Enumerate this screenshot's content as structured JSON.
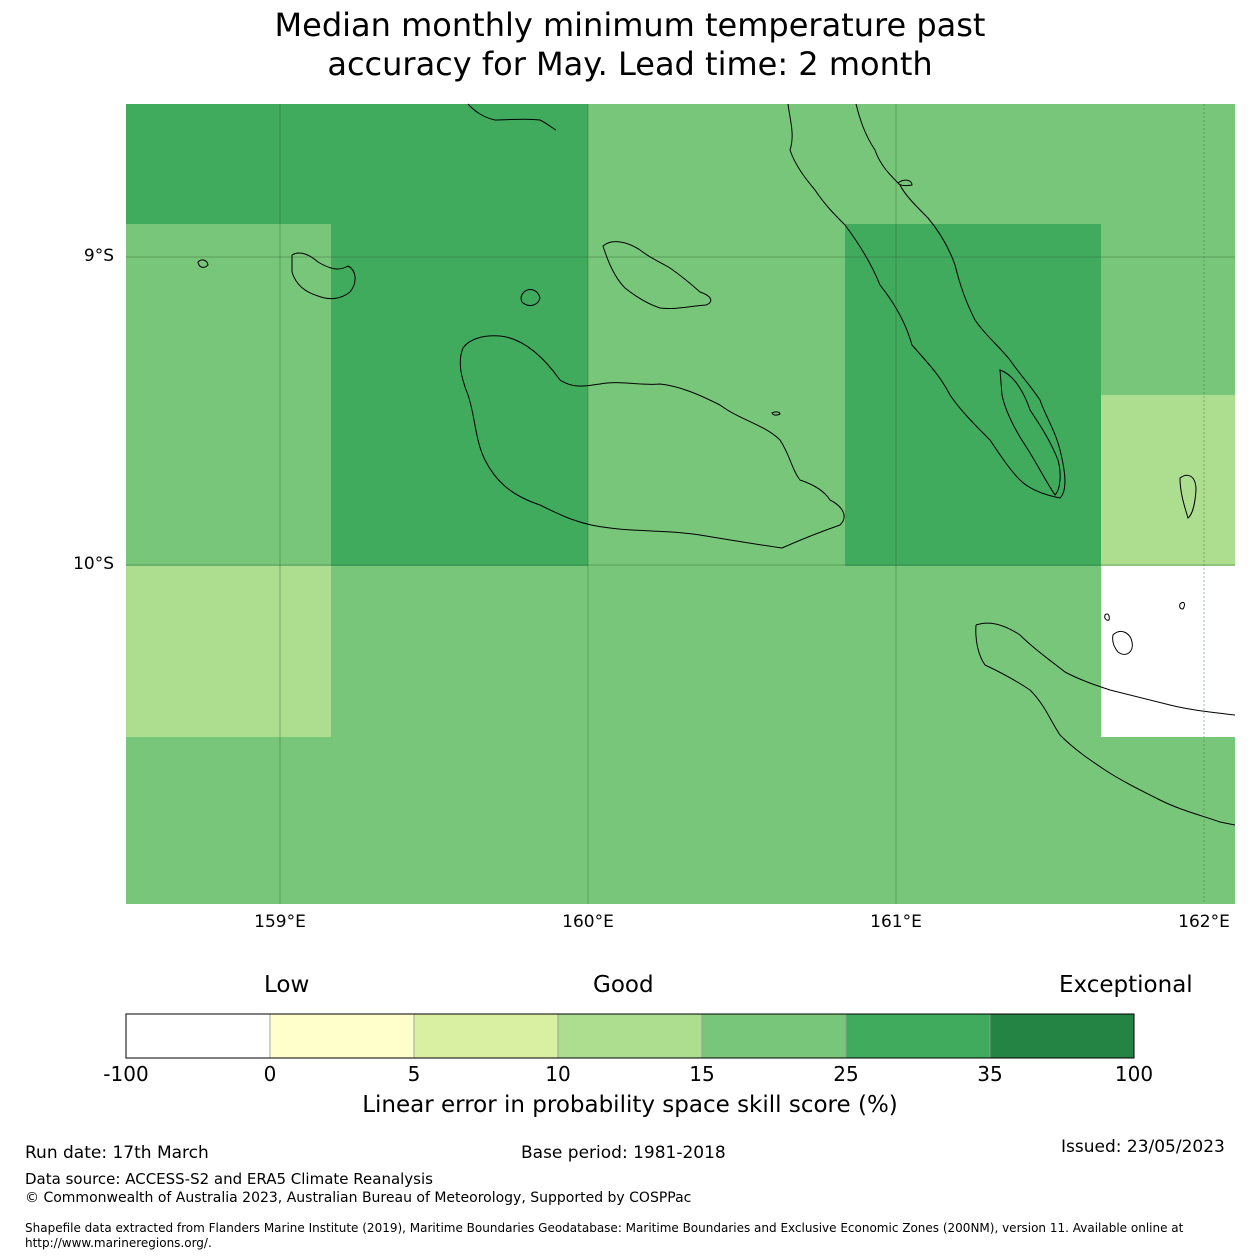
{
  "title": {
    "line1": "Median monthly minimum temperature past",
    "line2": "accuracy for May. Lead time: 2 month"
  },
  "map": {
    "lat_labels": [
      "9°S",
      "10°S"
    ],
    "lon_labels": [
      "159°E",
      "160°E",
      "161°E",
      "162°E"
    ],
    "cell_bands": {
      "band_15_25": "#78c679",
      "band_25_35": "#41ab5d",
      "band_10_15": "#addd8e",
      "no_data": "#ffffff"
    }
  },
  "colorbar": {
    "categories": [
      "Low",
      "Good",
      "Exceptional"
    ],
    "ticks": [
      "-100",
      "0",
      "5",
      "10",
      "15",
      "25",
      "35",
      "100"
    ],
    "colors": [
      "#ffffff",
      "#ffffcc",
      "#d9f0a3",
      "#addd8e",
      "#78c679",
      "#41ab5d",
      "#238443"
    ],
    "label": "Linear error in probability space skill score (%)"
  },
  "footer": {
    "run_date": "Run date: 17th March",
    "base_period": "Base period: 1981-2018",
    "issued": "Issued: 23/05/2023",
    "data_source": "Data source: ACCESS-S2 and ERA5 Climate Reanalysis",
    "copyright": "© Commonwealth of Australia 2023, Australian Bureau of Meteorology, Supported by COSPPac",
    "shapefile_line1": "Shapefile data extracted from Flanders Marine Institute (2019), Maritime Boundaries Geodatabase: Maritime Boundaries and Exclusive Economic Zones (200NM), version 11. Available online at",
    "shapefile_line2": "http://www.marineregions.org/."
  }
}
